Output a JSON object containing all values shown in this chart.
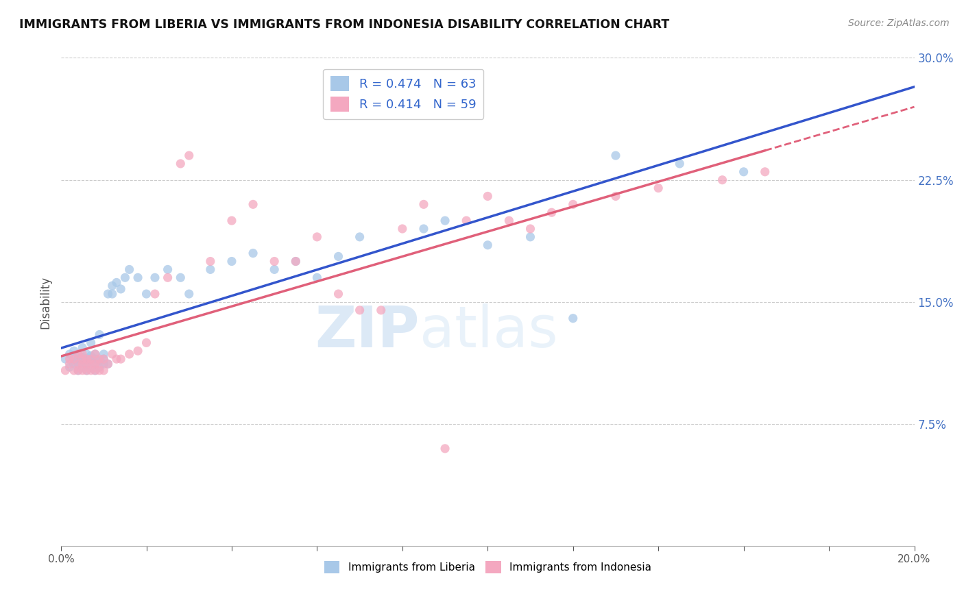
{
  "title": "IMMIGRANTS FROM LIBERIA VS IMMIGRANTS FROM INDONESIA DISABILITY CORRELATION CHART",
  "source": "Source: ZipAtlas.com",
  "ylabel": "Disability",
  "legend_blue_r": "R = 0.474",
  "legend_blue_n": "N = 63",
  "legend_pink_r": "R = 0.414",
  "legend_pink_n": "N = 59",
  "label_blue": "Immigrants from Liberia",
  "label_pink": "Immigrants from Indonesia",
  "x_min": 0.0,
  "x_max": 0.2,
  "y_min": 0.0,
  "y_max": 0.3,
  "yticks": [
    0.075,
    0.15,
    0.225,
    0.3
  ],
  "color_blue": "#a8c8e8",
  "color_pink": "#f4a8c0",
  "trendline_blue": "#3355cc",
  "trendline_pink": "#e0607a",
  "watermark_zip": "ZIP",
  "watermark_atlas": "atlas",
  "blue_x": [
    0.001,
    0.002,
    0.002,
    0.003,
    0.003,
    0.003,
    0.004,
    0.004,
    0.004,
    0.004,
    0.005,
    0.005,
    0.005,
    0.005,
    0.006,
    0.006,
    0.006,
    0.006,
    0.007,
    0.007,
    0.007,
    0.007,
    0.008,
    0.008,
    0.008,
    0.008,
    0.009,
    0.009,
    0.009,
    0.01,
    0.01,
    0.01,
    0.011,
    0.011,
    0.012,
    0.012,
    0.013,
    0.014,
    0.015,
    0.016,
    0.018,
    0.02,
    0.022,
    0.025,
    0.028,
    0.03,
    0.035,
    0.04,
    0.045,
    0.05,
    0.055,
    0.06,
    0.065,
    0.07,
    0.08,
    0.085,
    0.09,
    0.1,
    0.11,
    0.12,
    0.13,
    0.145,
    0.16
  ],
  "blue_y": [
    0.115,
    0.11,
    0.118,
    0.112,
    0.115,
    0.12,
    0.108,
    0.112,
    0.115,
    0.118,
    0.11,
    0.113,
    0.116,
    0.122,
    0.108,
    0.112,
    0.115,
    0.118,
    0.11,
    0.114,
    0.117,
    0.125,
    0.108,
    0.112,
    0.115,
    0.118,
    0.11,
    0.114,
    0.13,
    0.112,
    0.115,
    0.118,
    0.112,
    0.155,
    0.155,
    0.16,
    0.162,
    0.158,
    0.165,
    0.17,
    0.165,
    0.155,
    0.165,
    0.17,
    0.165,
    0.155,
    0.17,
    0.175,
    0.18,
    0.17,
    0.175,
    0.165,
    0.178,
    0.19,
    0.27,
    0.195,
    0.2,
    0.185,
    0.19,
    0.14,
    0.24,
    0.235,
    0.23
  ],
  "pink_x": [
    0.001,
    0.002,
    0.002,
    0.003,
    0.003,
    0.004,
    0.004,
    0.004,
    0.005,
    0.005,
    0.005,
    0.005,
    0.006,
    0.006,
    0.006,
    0.007,
    0.007,
    0.007,
    0.008,
    0.008,
    0.008,
    0.009,
    0.009,
    0.009,
    0.01,
    0.01,
    0.011,
    0.012,
    0.013,
    0.014,
    0.016,
    0.018,
    0.02,
    0.022,
    0.025,
    0.028,
    0.03,
    0.035,
    0.04,
    0.045,
    0.05,
    0.055,
    0.06,
    0.065,
    0.07,
    0.075,
    0.08,
    0.085,
    0.09,
    0.095,
    0.1,
    0.105,
    0.11,
    0.115,
    0.12,
    0.13,
    0.14,
    0.155,
    0.165
  ],
  "pink_y": [
    0.108,
    0.112,
    0.115,
    0.108,
    0.115,
    0.108,
    0.112,
    0.118,
    0.108,
    0.112,
    0.115,
    0.118,
    0.108,
    0.112,
    0.115,
    0.108,
    0.112,
    0.115,
    0.108,
    0.112,
    0.118,
    0.108,
    0.112,
    0.115,
    0.108,
    0.115,
    0.112,
    0.118,
    0.115,
    0.115,
    0.118,
    0.12,
    0.125,
    0.155,
    0.165,
    0.235,
    0.24,
    0.175,
    0.2,
    0.21,
    0.175,
    0.175,
    0.19,
    0.155,
    0.145,
    0.145,
    0.195,
    0.21,
    0.06,
    0.2,
    0.215,
    0.2,
    0.195,
    0.205,
    0.21,
    0.215,
    0.22,
    0.225,
    0.23
  ]
}
